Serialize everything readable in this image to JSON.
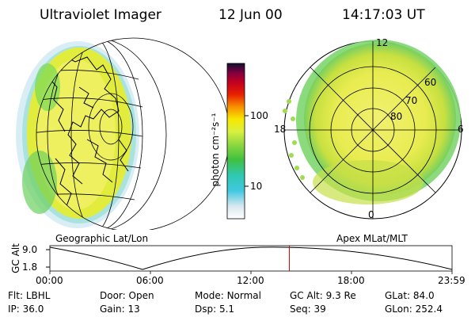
{
  "header": {
    "instrument": "Ultraviolet Imager",
    "date": "12 Jun 00",
    "time": "14:17:03 UT"
  },
  "colorbar": {
    "unit_label": "photon cm⁻²s⁻¹",
    "ticks": [
      "100",
      "10"
    ]
  },
  "polar_plot": {
    "mlt_labels": {
      "top": "12",
      "left": "18",
      "right": "6",
      "bottom": "0"
    },
    "lat_labels": [
      "60",
      "70",
      "80"
    ],
    "caption": "Apex MLat/MLT"
  },
  "globe": {
    "caption": "Geographic Lat/Lon"
  },
  "altitude_plot": {
    "ylabel": "GC Alt",
    "yticks": [
      "9.0",
      "1.8"
    ],
    "xticks": [
      "00:00",
      "06:00",
      "12:00",
      "18:00",
      "23:59"
    ],
    "marker_time": "14:17"
  },
  "info": {
    "row1": [
      {
        "label": "Flt:",
        "value": "LBHL"
      },
      {
        "label": "Door:",
        "value": "Open"
      },
      {
        "label": "Mode:",
        "value": "Normal"
      },
      {
        "label": "GC Alt:",
        "value": "9.3 Re"
      },
      {
        "label": "GLat:",
        "value": "84.0"
      }
    ],
    "row2": [
      {
        "label": "IP:",
        "value": "36.0"
      },
      {
        "label": "Gain:",
        "value": "13"
      },
      {
        "label": "Dsp:",
        "value": "5.1"
      },
      {
        "label": "Seq:",
        "value": "39"
      },
      {
        "label": "GLon:",
        "value": "252.4"
      }
    ]
  },
  "colors": {
    "emission_high": "#d8e820",
    "emission_mid": "#f0f060",
    "emission_low": "#30c8b0",
    "marker": "#cc0000"
  }
}
